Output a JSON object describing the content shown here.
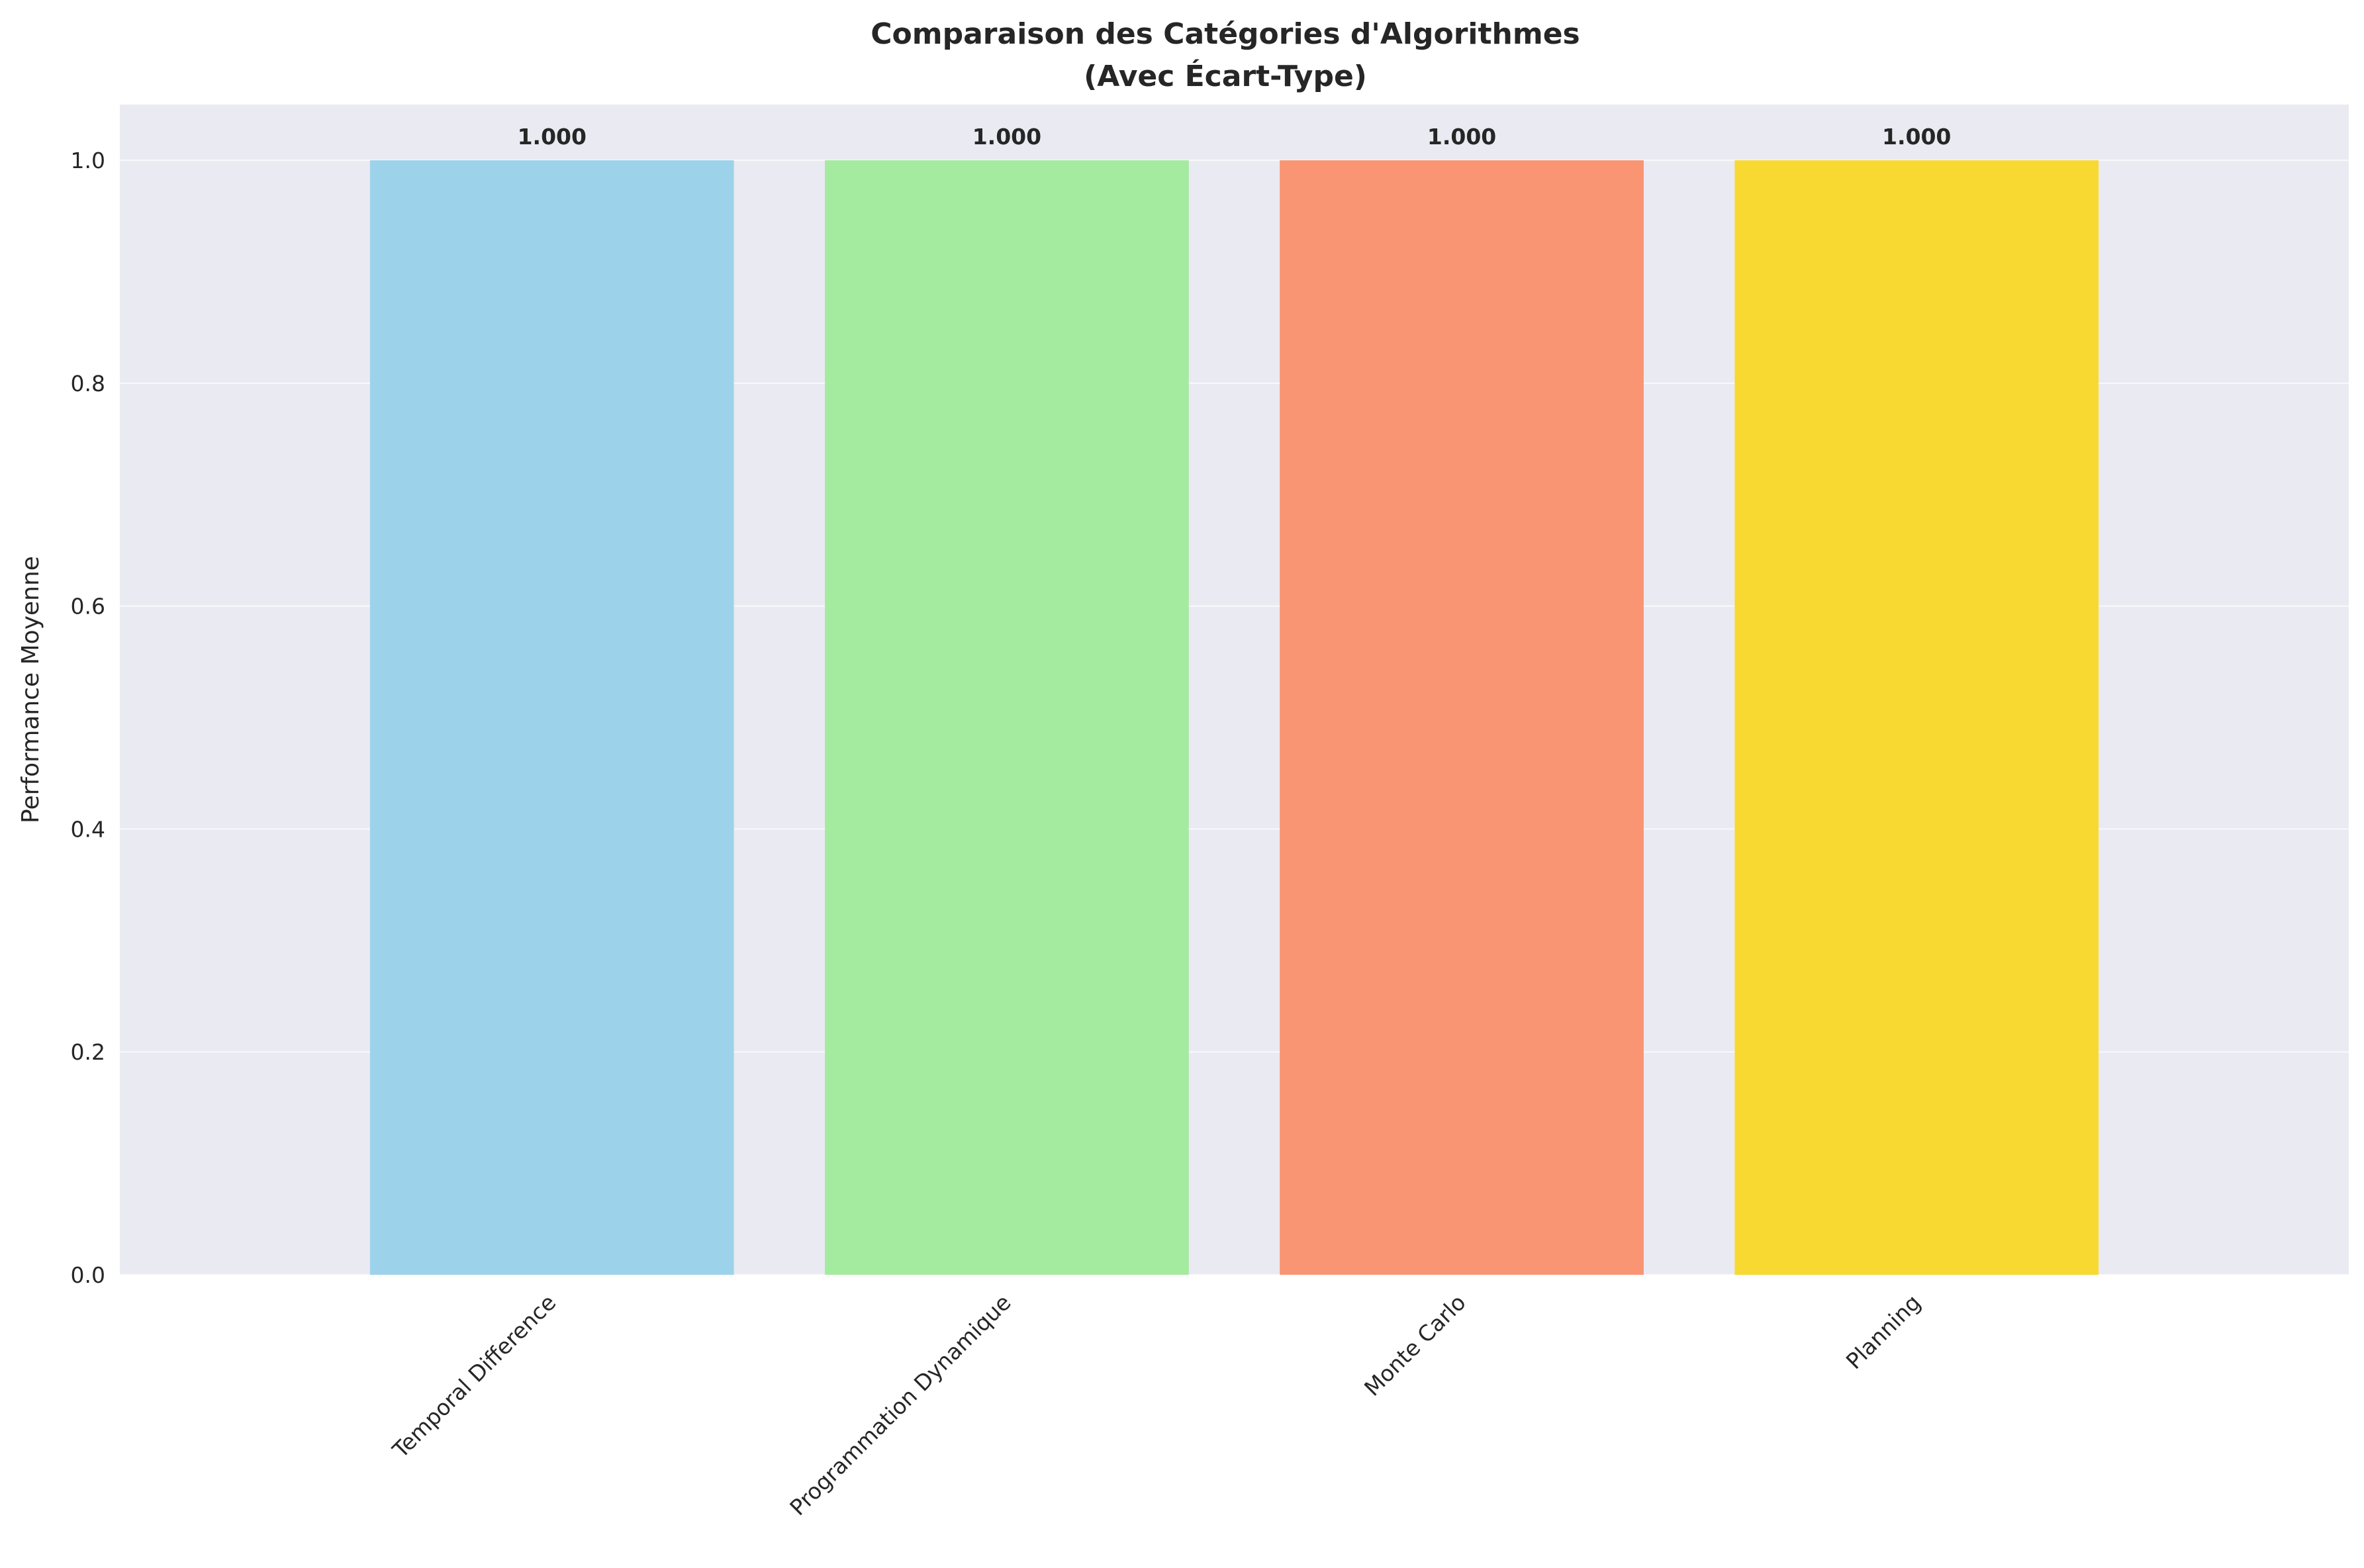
{
  "chart_data": {
    "type": "bar",
    "title": "Comparaison des Catégories d'Algorithmes",
    "subtitle": "(Avec Écart-Type)",
    "xlabel": "",
    "ylabel": "Performance Moyenne",
    "categories": [
      "Temporal Difference",
      "Programmation Dynamique",
      "Monte Carlo",
      "Planning"
    ],
    "values": [
      1.0,
      1.0,
      1.0,
      1.0
    ],
    "value_labels": [
      "1.000",
      "1.000",
      "1.000",
      "1.000"
    ],
    "colors": [
      "#9cd3eb",
      "#a4eba0",
      "#f99572",
      "#f8d932"
    ],
    "ylim": [
      0,
      1.05
    ],
    "yticks": [
      0.0,
      0.2,
      0.4,
      0.6,
      0.8,
      1.0
    ],
    "ytick_labels": [
      "0.0",
      "0.2",
      "0.4",
      "0.6",
      "0.8",
      "1.0"
    ],
    "grid": true,
    "background": "#eaeaf2"
  }
}
